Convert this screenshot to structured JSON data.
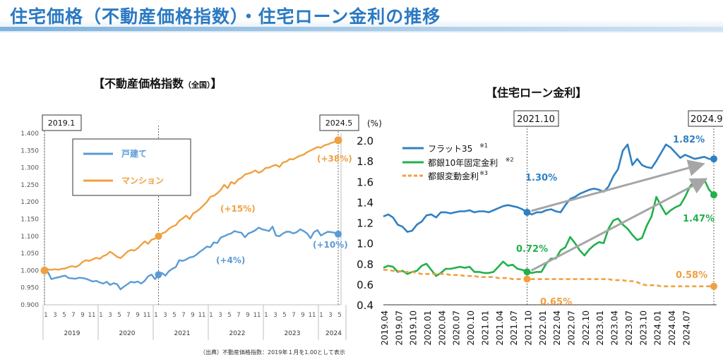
{
  "header": {
    "title": "住宅価格（不動産価格指数）・住宅ローン金利の推移"
  },
  "source_note": "（出典）不動産価格指数：2019年１月を1.00として表示",
  "colors": {
    "detached": "#5b9bd5",
    "condo": "#f0a040",
    "flat35": "#2f80c3",
    "fixed10": "#22b04b",
    "variable": "#f0a040",
    "title": "#2b79c2"
  },
  "chart_data": [
    {
      "type": "line",
      "title": "【不動産価格指数",
      "title_suffix": "（全国）",
      "title_close": "】",
      "ylim": [
        0.9,
        1.4
      ],
      "yticks": [
        "0.900",
        "0.950",
        "1.000",
        "1.050",
        "1.100",
        "1.150",
        "1.200",
        "1.250",
        "1.300",
        "1.350",
        "1.400"
      ],
      "month_labels": [
        "1",
        "3",
        "5",
        "7",
        "9",
        "11",
        "1",
        "3",
        "5",
        "7",
        "9",
        "11",
        "1",
        "3",
        "5",
        "7",
        "9",
        "11",
        "1",
        "3",
        "5",
        "7",
        "9",
        "11",
        "1",
        "3",
        "5",
        "7",
        "9",
        "11",
        "1",
        "3",
        "5"
      ],
      "years": [
        "2019",
        "2020",
        "2021",
        "2022",
        "2023",
        "2024"
      ],
      "markers": [
        "2019.1",
        "2024.5"
      ],
      "legend": [
        "戸建て",
        "マンション"
      ],
      "series": [
        {
          "name": "戸建て",
          "values": [
            1.0,
            0.995,
            0.975,
            0.978,
            0.98,
            0.983,
            0.985,
            0.978,
            0.977,
            0.976,
            0.979,
            0.978,
            0.976,
            0.972,
            0.968,
            0.97,
            0.965,
            0.962,
            0.967,
            0.958,
            0.963,
            0.96,
            0.945,
            0.953,
            0.96,
            0.967,
            0.965,
            0.968,
            0.962,
            0.97,
            0.983,
            0.988,
            0.975,
            0.988,
            0.993,
            0.985,
            0.998,
            1.005,
            1.01,
            1.03,
            1.028,
            1.032,
            1.038,
            1.04,
            1.046,
            1.055,
            1.062,
            1.07,
            1.068,
            1.082,
            1.08,
            1.096,
            1.1,
            1.105,
            1.108,
            1.115,
            1.112,
            1.11,
            1.097,
            1.108,
            1.112,
            1.117,
            1.125,
            1.12,
            1.118,
            1.115,
            1.128,
            1.102,
            1.1,
            1.108,
            1.113,
            1.113,
            1.108,
            1.112,
            1.12,
            1.115,
            1.108,
            1.094,
            1.112,
            1.118,
            1.102,
            1.108,
            1.113,
            1.112,
            1.11,
            1.106
          ]
        },
        {
          "name": "マンション",
          "values": [
            1.005,
            1.003,
            1.002,
            1.004,
            1.002,
            1.005,
            1.006,
            1.01,
            1.013,
            1.01,
            1.015,
            1.025,
            1.03,
            1.028,
            1.033,
            1.037,
            1.034,
            1.042,
            1.046,
            1.055,
            1.048,
            1.04,
            1.036,
            1.045,
            1.055,
            1.06,
            1.058,
            1.065,
            1.075,
            1.085,
            1.078,
            1.09,
            1.093,
            1.1,
            1.108,
            1.112,
            1.122,
            1.128,
            1.132,
            1.145,
            1.152,
            1.16,
            1.15,
            1.166,
            1.172,
            1.18,
            1.19,
            1.2,
            1.215,
            1.218,
            1.225,
            1.235,
            1.25,
            1.24,
            1.258,
            1.253,
            1.265,
            1.27,
            1.28,
            1.283,
            1.286,
            1.292,
            1.285,
            1.29,
            1.299,
            1.3,
            1.305,
            1.308,
            1.302,
            1.315,
            1.318,
            1.325,
            1.324,
            1.33,
            1.335,
            1.338,
            1.345,
            1.35,
            1.355,
            1.36,
            1.358,
            1.365,
            1.368,
            1.372,
            1.375,
            1.38
          ]
        }
      ],
      "annotations": [
        "(+4%)",
        "(+15%)",
        "(+10%)",
        "(+38%)"
      ]
    },
    {
      "type": "line",
      "title": "【住宅ローン金利】",
      "unit": "(%)",
      "ylim": [
        0.4,
        2.0
      ],
      "yticks": [
        "0.4",
        "0.6",
        "0.8",
        "1.0",
        "1.2",
        "1.4",
        "1.6",
        "1.8",
        "2.0"
      ],
      "xticks": [
        "2019.04",
        "2019.07",
        "2019.10",
        "2020.01",
        "2020.04",
        "2020.07",
        "2020.10",
        "2021.01",
        "2021.04",
        "2021.07",
        "2021.10",
        "2022.01",
        "2022.04",
        "2022.07",
        "2022.10",
        "2023.01",
        "2023.04",
        "2023.07",
        "2023.10",
        "2024.01",
        "2024.04",
        "2024.07"
      ],
      "markers": [
        "2021.10",
        "2024.9"
      ],
      "legend": [
        {
          "label": "フラット35",
          "note": "※1"
        },
        {
          "label": "都銀10年固定金利",
          "note": "※2"
        },
        {
          "label": "都銀変動金利",
          "note": "※3"
        }
      ],
      "series": [
        {
          "name": "フラット35",
          "values": [
            1.26,
            1.28,
            1.25,
            1.18,
            1.16,
            1.11,
            1.12,
            1.18,
            1.21,
            1.27,
            1.28,
            1.25,
            1.3,
            1.3,
            1.29,
            1.3,
            1.31,
            1.31,
            1.32,
            1.3,
            1.31,
            1.31,
            1.3,
            1.32,
            1.34,
            1.36,
            1.37,
            1.36,
            1.35,
            1.33,
            1.3,
            1.28,
            1.3,
            1.3,
            1.32,
            1.33,
            1.31,
            1.3,
            1.37,
            1.43,
            1.45,
            1.48,
            1.5,
            1.52,
            1.53,
            1.52,
            1.5,
            1.55,
            1.65,
            1.72,
            1.9,
            1.96,
            1.76,
            1.82,
            1.76,
            1.74,
            1.73,
            1.8,
            1.88,
            1.96,
            1.93,
            1.88,
            1.83,
            1.86,
            1.84,
            1.82,
            1.83,
            1.84,
            1.82,
            1.82
          ]
        },
        {
          "name": "都銀10年固定金利",
          "values": [
            0.76,
            0.78,
            0.77,
            0.72,
            0.73,
            0.7,
            0.72,
            0.73,
            0.78,
            0.8,
            0.74,
            0.68,
            0.71,
            0.75,
            0.75,
            0.76,
            0.77,
            0.76,
            0.77,
            0.72,
            0.72,
            0.71,
            0.71,
            0.72,
            0.77,
            0.82,
            0.78,
            0.79,
            0.75,
            0.74,
            0.72,
            0.71,
            0.72,
            0.72,
            0.8,
            0.85,
            0.85,
            0.93,
            0.96,
            1.06,
            1.0,
            0.93,
            0.88,
            0.94,
            0.98,
            1.01,
            1.0,
            1.14,
            1.22,
            1.24,
            1.18,
            1.14,
            1.08,
            1.03,
            1.05,
            1.17,
            1.26,
            1.45,
            1.36,
            1.28,
            1.32,
            1.35,
            1.37,
            1.45,
            1.55,
            1.61,
            1.58,
            1.62,
            1.52,
            1.47
          ]
        },
        {
          "name": "都銀変動金利",
          "values": [
            0.74,
            0.74,
            0.73,
            0.73,
            0.72,
            0.72,
            0.72,
            0.71,
            0.7,
            0.7,
            0.7,
            0.7,
            0.7,
            0.7,
            0.69,
            0.69,
            0.69,
            0.68,
            0.68,
            0.68,
            0.67,
            0.67,
            0.67,
            0.67,
            0.66,
            0.66,
            0.66,
            0.65,
            0.65,
            0.65,
            0.65,
            0.65,
            0.65,
            0.65,
            0.65,
            0.65,
            0.65,
            0.65,
            0.65,
            0.65,
            0.65,
            0.65,
            0.65,
            0.65,
            0.65,
            0.65,
            0.65,
            0.65,
            0.64,
            0.64,
            0.64,
            0.63,
            0.63,
            0.62,
            0.6,
            0.59,
            0.59,
            0.59,
            0.58,
            0.58,
            0.58,
            0.58,
            0.58,
            0.58,
            0.58,
            0.58,
            0.58,
            0.58,
            0.58,
            0.58
          ]
        }
      ],
      "annotations": [
        "1.30%",
        "1.82%",
        "0.72%",
        "1.47%",
        "0.65%",
        "0.58%"
      ]
    }
  ]
}
